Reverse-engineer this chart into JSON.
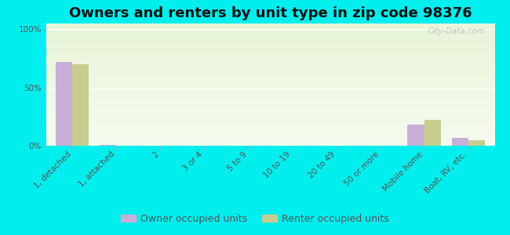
{
  "title": "Owners and renters by unit type in zip code 98376",
  "categories": [
    "1, detached",
    "1, attached",
    "2",
    "3 or 4",
    "5 to 9",
    "10 to 19",
    "20 to 49",
    "50 or more",
    "Mobile home",
    "Boat, RV, etc."
  ],
  "owner_values": [
    72,
    1,
    0,
    0,
    0,
    0,
    0,
    0,
    18,
    7
  ],
  "renter_values": [
    70,
    0,
    0,
    0,
    0,
    0,
    0,
    0,
    22,
    5
  ],
  "owner_color": "#c8afd8",
  "renter_color": "#c8cc8e",
  "background_color": "#00eeee",
  "ylabel_ticks": [
    "0%",
    "50%",
    "100%"
  ],
  "yticks": [
    0,
    50,
    100
  ],
  "ylim": [
    0,
    105
  ],
  "legend_owner": "Owner occupied units",
  "legend_renter": "Renter occupied units",
  "bar_width": 0.38,
  "title_fontsize": 13,
  "tick_fontsize": 7.5,
  "legend_fontsize": 9,
  "watermark": "City-Data.com"
}
